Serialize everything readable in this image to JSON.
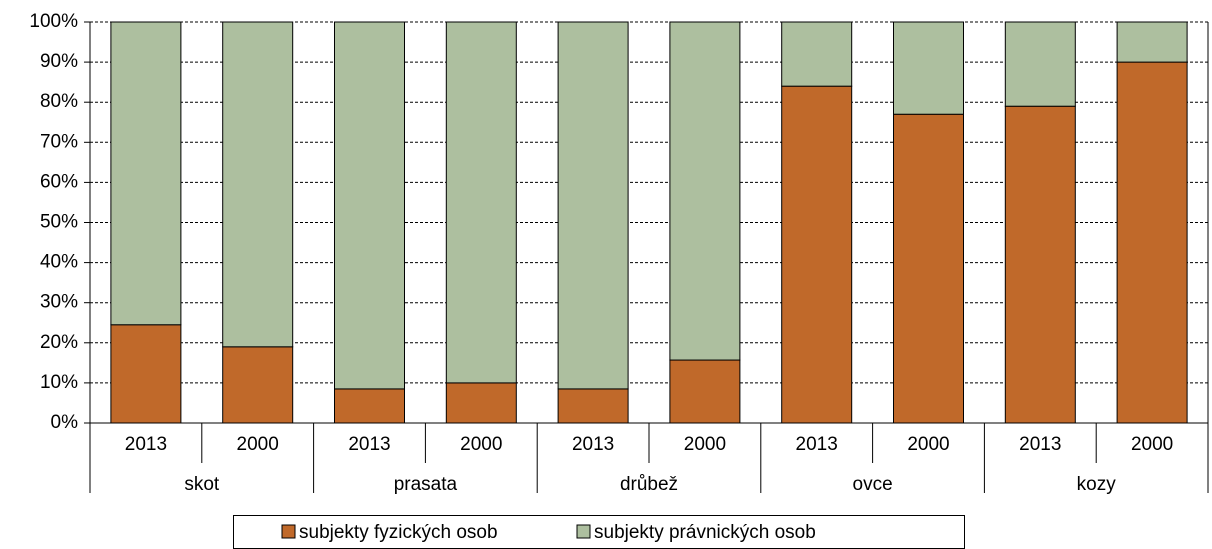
{
  "chart_data": {
    "type": "stacked_bar",
    "categories": [
      "2013",
      "2000",
      "2013",
      "2000",
      "2013",
      "2000",
      "2013",
      "2000",
      "2013",
      "2000"
    ],
    "groups": [
      "skot",
      "prasata",
      "drůbež",
      "ovce",
      "kozy"
    ],
    "series": [
      {
        "name": "subjekty fyzických osob",
        "color": "#c0692a",
        "values": [
          24.5,
          19,
          8.5,
          10,
          8.5,
          15.7,
          84,
          77,
          79,
          90
        ]
      },
      {
        "name": "subjekty právnických osob",
        "color": "#adbf9f",
        "values": [
          75.5,
          81,
          91.5,
          90,
          91.5,
          84.3,
          16,
          23,
          21,
          10
        ]
      }
    ],
    "ylim": [
      0,
      100
    ],
    "yticks": [
      {
        "value": 0,
        "label": "0%"
      },
      {
        "value": 10,
        "label": "10%"
      },
      {
        "value": 20,
        "label": "20%"
      },
      {
        "value": 30,
        "label": "30%"
      },
      {
        "value": 40,
        "label": "40%"
      },
      {
        "value": 50,
        "label": "50%"
      },
      {
        "value": 60,
        "label": "60%"
      },
      {
        "value": 70,
        "label": "70%"
      },
      {
        "value": 80,
        "label": "80%"
      },
      {
        "value": 90,
        "label": "90%"
      },
      {
        "value": 100,
        "label": "100%"
      }
    ],
    "grid": true,
    "legend": "bottom"
  }
}
